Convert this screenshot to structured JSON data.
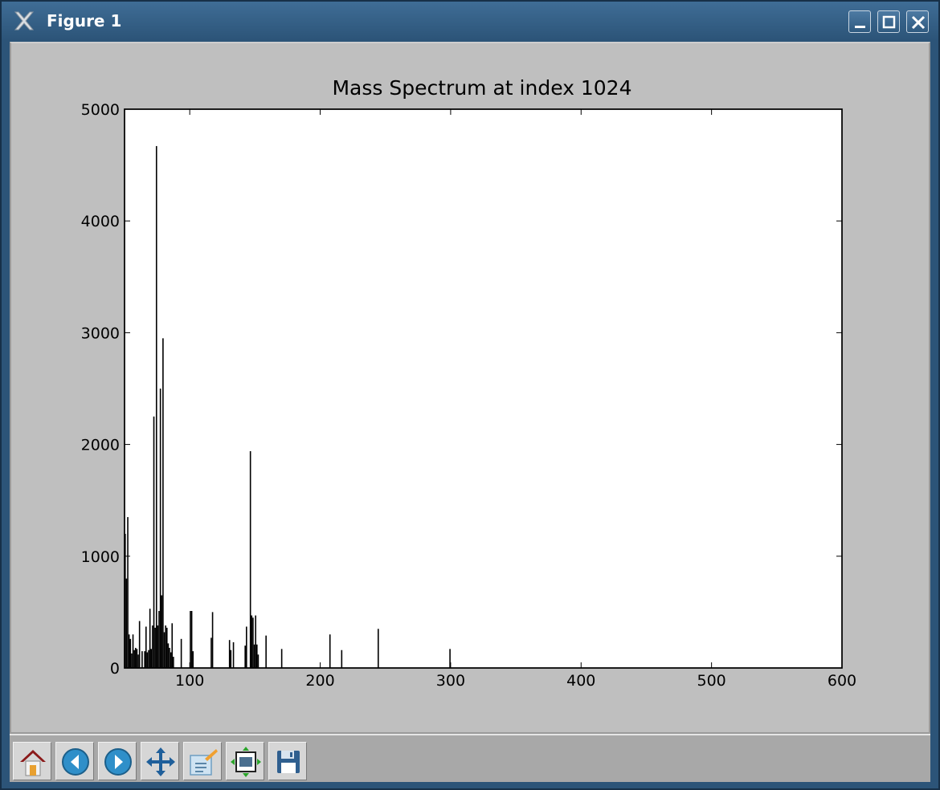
{
  "window": {
    "title": "Figure 1",
    "controls": [
      "minimize-icon",
      "maximize-icon",
      "close-icon"
    ],
    "colors": {
      "titlebar": "#2c5478",
      "canvas": "#bfbfbf",
      "plot_bg": "#ffffff",
      "bars": "#000000"
    }
  },
  "toolbar": {
    "buttons": [
      {
        "name": "home-button",
        "icon": "home-icon"
      },
      {
        "name": "back-button",
        "icon": "back-arrow-icon"
      },
      {
        "name": "forward-button",
        "icon": "forward-arrow-icon"
      },
      {
        "name": "pan-button",
        "icon": "move-arrows-icon"
      },
      {
        "name": "zoom-button",
        "icon": "zoom-rect-icon"
      },
      {
        "name": "subplots-button",
        "icon": "subplots-config-icon"
      },
      {
        "name": "save-button",
        "icon": "floppy-disk-icon"
      }
    ]
  },
  "chart_data": {
    "type": "bar",
    "title": "Mass Spectrum at index 1024",
    "xlabel": "",
    "ylabel": "",
    "xlim": [
      50,
      600
    ],
    "ylim": [
      0,
      5000
    ],
    "xticks": [
      100,
      200,
      300,
      400,
      500,
      600
    ],
    "yticks": [
      0,
      1000,
      2000,
      3000,
      4000,
      5000
    ],
    "grid": false,
    "x": [
      50,
      51,
      52,
      53,
      54,
      55,
      56,
      57,
      58,
      59,
      60,
      61,
      63,
      65,
      66,
      67,
      68,
      69,
      70,
      71,
      72,
      73,
      74,
      75,
      76,
      77,
      78,
      79,
      80,
      81,
      82,
      83,
      84,
      85,
      86,
      87,
      93,
      100,
      101,
      102,
      116,
      117,
      130,
      131,
      133,
      142,
      143,
      146,
      147,
      148,
      149,
      150,
      151,
      152,
      158,
      170,
      207,
      216,
      244,
      299
    ],
    "values": [
      1200,
      800,
      1350,
      300,
      260,
      130,
      300,
      160,
      180,
      170,
      120,
      420,
      150,
      150,
      370,
      140,
      160,
      530,
      170,
      380,
      2250,
      360,
      4670,
      380,
      510,
      2500,
      650,
      2950,
      320,
      380,
      360,
      220,
      180,
      140,
      400,
      100,
      260,
      510,
      510,
      150,
      270,
      500,
      250,
      160,
      230,
      200,
      370,
      1940,
      470,
      450,
      210,
      470,
      210,
      120,
      290,
      170,
      300,
      160,
      350,
      170
    ]
  }
}
